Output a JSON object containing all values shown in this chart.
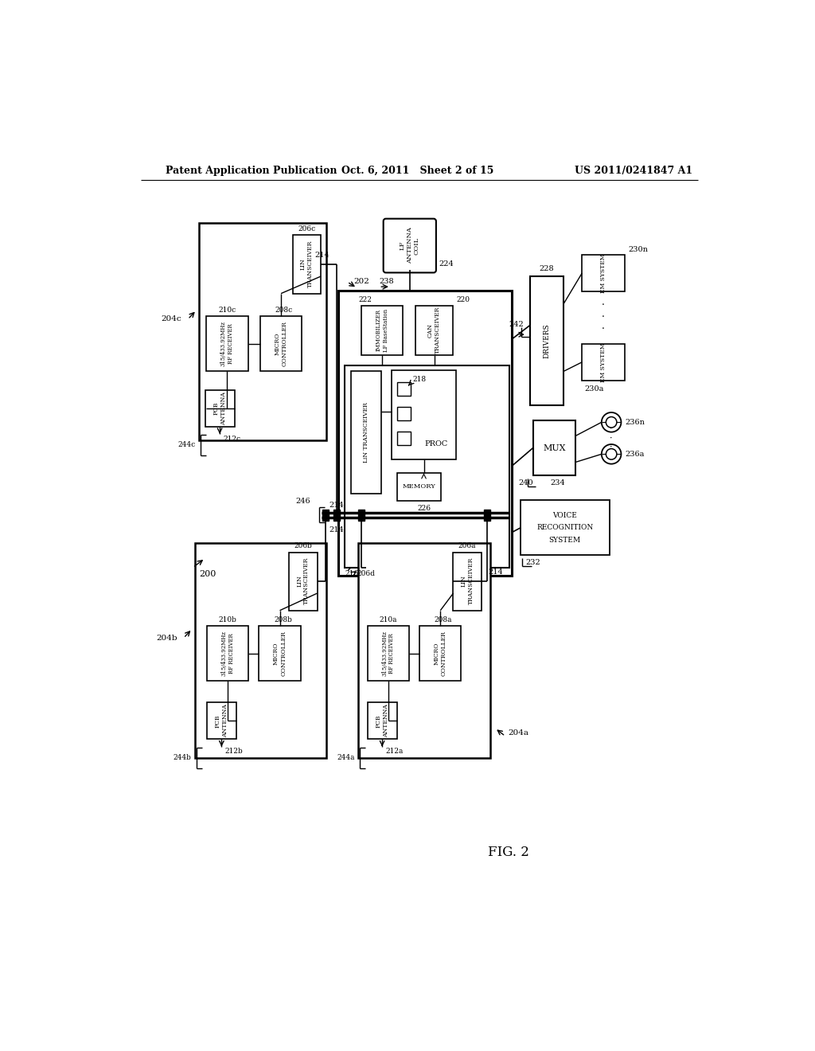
{
  "title_left": "Patent Application Publication",
  "title_center": "Oct. 6, 2011   Sheet 2 of 15",
  "title_right": "US 2011/0241847 A1",
  "fig_label": "FIG. 2",
  "bg_color": "#ffffff",
  "line_color": "#000000"
}
